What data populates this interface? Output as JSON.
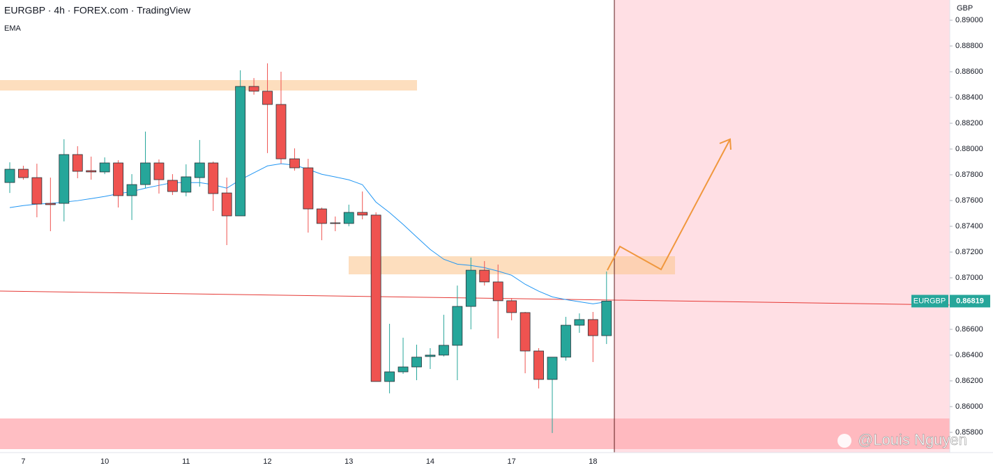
{
  "chart_data": {
    "type": "candlestick",
    "title": "EURGBP · 4h · FOREX.com · TradingView",
    "y_axis_label": "GBP",
    "watermark": "@Louis Nguyen",
    "categories": [
      null,
      "7",
      null,
      null,
      null,
      null,
      null,
      "10",
      null,
      null,
      null,
      null,
      null,
      "11",
      null,
      null,
      null,
      null,
      null,
      "12",
      null,
      null,
      null,
      null,
      null,
      "13",
      null,
      null,
      null,
      null,
      null,
      "14",
      null,
      null,
      null,
      null,
      null,
      "17",
      null,
      null,
      null,
      null,
      null,
      "18",
      null
    ],
    "up_color": "#26a69a",
    "down_color": "#ef5350",
    "open": [
      0.8774,
      0.87843,
      0.87778,
      0.87578,
      0.87578,
      0.87957,
      0.87832,
      0.87822,
      0.87892,
      0.87638,
      0.87724,
      0.87892,
      0.87757,
      0.87665,
      0.87778,
      0.87892,
      0.87659,
      0.87481,
      0.88486,
      0.88449,
      0.88346,
      0.87924,
      0.87854,
      0.87535,
      0.87427,
      0.87422,
      0.87508,
      0.87487,
      0.86195,
      0.8627,
      0.86308,
      0.86389,
      0.864,
      0.86476,
      0.86778,
      0.87059,
      0.86968,
      0.86822,
      0.8673,
      0.86432,
      0.86211,
      0.86384,
      0.86632,
      0.86676,
      0.86551
    ],
    "high": [
      0.87897,
      0.8787,
      0.87886,
      0.87778,
      0.88076,
      0.88022,
      0.87941,
      0.87935,
      0.87913,
      0.87805,
      0.88135,
      0.87919,
      0.87805,
      0.87881,
      0.8807,
      0.87903,
      0.87778,
      0.88611,
      0.88551,
      0.88665,
      0.886,
      0.88005,
      0.87924,
      0.87546,
      0.87476,
      0.87568,
      0.8767,
      0.87508,
      0.86643,
      0.86535,
      0.86481,
      0.86454,
      0.86713,
      0.8694,
      0.87157,
      0.8713,
      0.87103,
      0.86843,
      0.86735,
      0.86454,
      0.86384,
      0.86697,
      0.86724,
      0.86735,
      0.87049
    ],
    "low": [
      0.87659,
      0.87762,
      0.8747,
      0.87362,
      0.87438,
      0.87773,
      0.87762,
      0.87805,
      0.87546,
      0.87449,
      0.87697,
      0.87654,
      0.87643,
      0.87633,
      0.87708,
      0.87519,
      0.87254,
      0.87481,
      0.88422,
      0.87968,
      0.87886,
      0.87832,
      0.87351,
      0.87292,
      0.87362,
      0.874,
      0.87454,
      0.86195,
      0.86103,
      0.86254,
      0.86205,
      0.86292,
      0.86389,
      0.86205,
      0.866,
      0.8694,
      0.8653,
      0.8667,
      0.86259,
      0.86141,
      0.85795,
      0.86357,
      0.86573,
      0.86346,
      0.86486
    ],
    "close": [
      0.87843,
      0.87778,
      0.87573,
      0.87568,
      0.87957,
      0.87827,
      0.87822,
      0.87892,
      0.87638,
      0.87724,
      0.87892,
      0.87762,
      0.8767,
      0.87784,
      0.87892,
      0.87654,
      0.87481,
      0.88486,
      0.88449,
      0.88346,
      0.87924,
      0.87854,
      0.87535,
      0.87422,
      0.87422,
      0.87508,
      0.87487,
      0.86195,
      0.8627,
      0.86308,
      0.86384,
      0.864,
      0.86476,
      0.86778,
      0.87059,
      0.86968,
      0.86822,
      0.8673,
      0.86432,
      0.86211,
      0.86384,
      0.86632,
      0.86676,
      0.86551,
      0.86819
    ],
    "overlay": {
      "name": "EMA",
      "color": "#2196f3",
      "values": [
        0.87545,
        0.87561,
        0.87572,
        0.87578,
        0.87588,
        0.87599,
        0.87615,
        0.87632,
        0.87653,
        0.8767,
        0.87696,
        0.87718,
        0.87739,
        0.87739,
        0.87739,
        0.87723,
        0.87696,
        0.87761,
        0.87815,
        0.87869,
        0.87886,
        0.87875,
        0.87842,
        0.87804,
        0.87783,
        0.87761,
        0.87723,
        0.87588,
        0.87507,
        0.87415,
        0.87317,
        0.8722,
        0.87144,
        0.87106,
        0.87096,
        0.87079,
        0.87052,
        0.8702,
        0.8695,
        0.86896,
        0.86852,
        0.86831,
        0.86814,
        0.86798,
        0.86814
      ]
    },
    "last_price": {
      "symbol": "EURGBP",
      "value": 0.86819
    },
    "ylim": [
      0.85643,
      0.89157
    ],
    "yticks": [
      {
        "value": 0.858,
        "label": "0.85800"
      },
      {
        "value": 0.86,
        "label": "0.86000"
      },
      {
        "value": 0.862,
        "label": "0.86200"
      },
      {
        "value": 0.864,
        "label": "0.86400"
      },
      {
        "value": 0.866,
        "label": "0.86600"
      },
      {
        "value": 0.868,
        "label": "0.86800"
      },
      {
        "value": 0.87,
        "label": "0.87000"
      },
      {
        "value": 0.872,
        "label": "0.87200"
      },
      {
        "value": 0.874,
        "label": "0.87400"
      },
      {
        "value": 0.876,
        "label": "0.87600"
      },
      {
        "value": 0.878,
        "label": "0.87800"
      },
      {
        "value": 0.88,
        "label": "0.88000"
      },
      {
        "value": 0.882,
        "label": "0.88200"
      },
      {
        "value": 0.884,
        "label": "0.88400"
      },
      {
        "value": 0.886,
        "label": "0.88600"
      },
      {
        "value": 0.888,
        "label": "0.88800"
      },
      {
        "value": 0.89,
        "label": "0.89000"
      }
    ]
  }
}
